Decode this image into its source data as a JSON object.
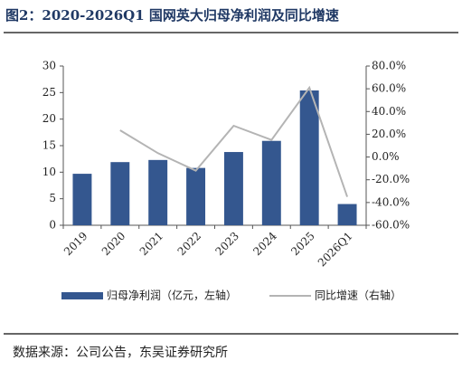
{
  "chart_data": {
    "type": "bar-line",
    "title": "图2：2020-2026Q1 国网英大归母净利润及同比增速",
    "source": "数据来源：公司公告，东吴证券研究所",
    "categories": [
      "2019",
      "2020",
      "2021",
      "2022",
      "2023",
      "2024",
      "2025",
      "2026Q1"
    ],
    "series": [
      {
        "name": "归母净利润（亿元，左轴）",
        "type": "bar",
        "color": "#34578f",
        "values": [
          9.7,
          11.9,
          12.3,
          10.8,
          13.8,
          15.9,
          25.4,
          4.0
        ]
      },
      {
        "name": "同比增速（右轴）",
        "type": "line",
        "axis": "y2",
        "color": "#b4b4b4",
        "values": [
          null,
          23.5,
          3.4,
          -12,
          27.5,
          15,
          61,
          -35
        ]
      }
    ],
    "ylim": [
      0,
      30
    ],
    "yticks": [
      0,
      5,
      10,
      15,
      20,
      25,
      30
    ],
    "y2lim": [
      -60,
      80
    ],
    "y2ticks": [
      {
        "value": -60,
        "label": "-60.0%"
      },
      {
        "value": -40,
        "label": "-40.0%"
      },
      {
        "value": -20,
        "label": "-20.0%"
      },
      {
        "value": 0,
        "label": "0.0%"
      },
      {
        "value": 20,
        "label": "20.0%"
      },
      {
        "value": 40,
        "label": "40.0%"
      },
      {
        "value": 60,
        "label": "60.0%"
      },
      {
        "value": 80,
        "label": "80.0%"
      }
    ]
  }
}
